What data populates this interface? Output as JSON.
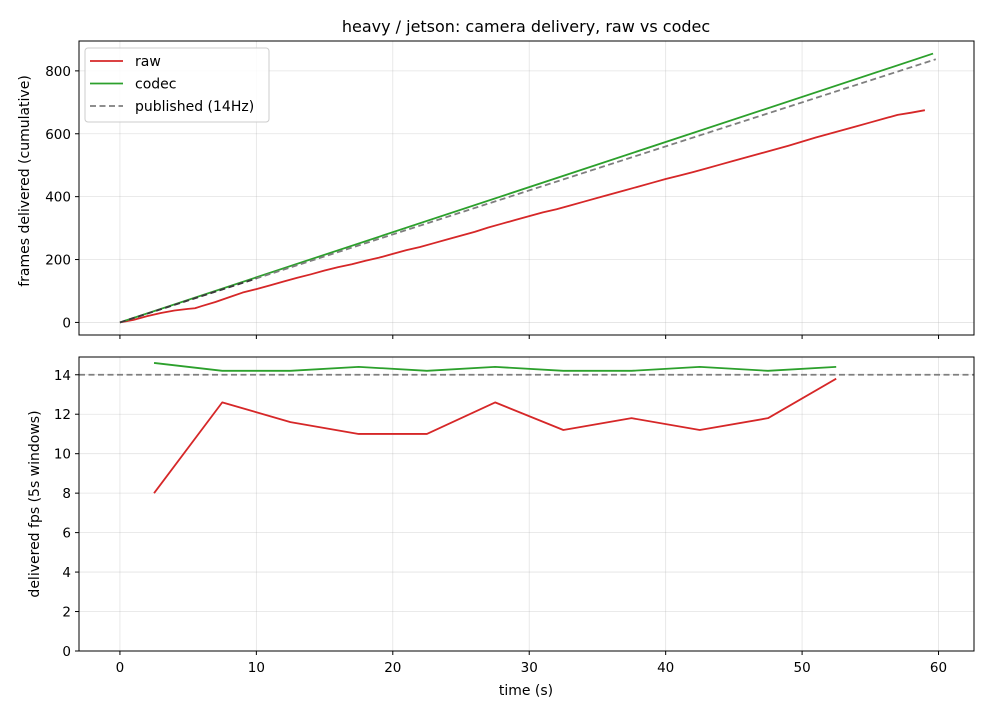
{
  "title": "heavy / jetson: camera delivery, raw vs codec",
  "xlabel": "time (s)",
  "colors": {
    "raw": "#d62728",
    "codec": "#2ca02c",
    "published": "#7f7f7f",
    "published_top": "#3a3a3a"
  },
  "chart_data": [
    {
      "type": "line",
      "ylabel": "frames delivered (cumulative)",
      "xlim": [
        -3,
        62.6
      ],
      "ylim": [
        -40,
        895
      ],
      "xticks": [
        0,
        10,
        20,
        30,
        40,
        50,
        60
      ],
      "yticks": [
        0,
        200,
        400,
        600,
        800
      ],
      "grid": true,
      "legend": "top-left",
      "series": [
        {
          "name": "raw",
          "x": [
            0,
            1,
            2,
            3,
            4,
            5,
            5.5,
            6,
            7,
            8,
            9,
            10,
            11,
            12,
            13,
            14,
            15,
            16,
            17,
            18,
            19,
            20,
            21,
            22,
            23,
            24,
            25,
            26,
            27,
            28,
            29,
            30,
            31,
            32,
            33,
            34,
            35,
            36,
            37,
            38,
            39,
            40,
            41,
            42,
            43,
            44,
            45,
            46,
            47,
            48,
            49,
            50,
            51,
            52,
            53,
            54,
            55,
            56,
            57,
            58,
            59
          ],
          "y": [
            0,
            8,
            20,
            30,
            38,
            43,
            45,
            52,
            65,
            80,
            95,
            106,
            118,
            130,
            142,
            153,
            165,
            176,
            185,
            196,
            206,
            218,
            230,
            240,
            252,
            264,
            276,
            288,
            302,
            314,
            326,
            338,
            350,
            360,
            372,
            384,
            396,
            408,
            420,
            432,
            444,
            456,
            467,
            478,
            490,
            502,
            514,
            526,
            538,
            550,
            562,
            575,
            588,
            600,
            612,
            624,
            636,
            648,
            660,
            667,
            675
          ]
        },
        {
          "name": "codec",
          "x": [
            0,
            59.6
          ],
          "y": [
            0,
            855
          ]
        },
        {
          "name": "published (14Hz)",
          "dashed": true,
          "x": [
            0,
            59.8
          ],
          "y": [
            0,
            837
          ]
        }
      ]
    },
    {
      "type": "line",
      "ylabel": "delivered fps (5s windows)",
      "xlim": [
        -3,
        62.6
      ],
      "ylim": [
        0,
        14.9
      ],
      "xticks": [
        0,
        10,
        20,
        30,
        40,
        50,
        60
      ],
      "yticks": [
        0,
        2,
        4,
        6,
        8,
        10,
        12,
        14
      ],
      "grid": true,
      "series": [
        {
          "name": "raw",
          "x": [
            2.5,
            7.5,
            12.5,
            17.5,
            22.5,
            27.5,
            32.5,
            37.5,
            42.5,
            47.5,
            52.5
          ],
          "y": [
            8.0,
            12.6,
            11.6,
            11.0,
            11.0,
            12.6,
            11.2,
            11.8,
            11.2,
            11.8,
            13.8
          ]
        },
        {
          "name": "codec",
          "x": [
            2.5,
            7.5,
            12.5,
            17.5,
            22.5,
            27.5,
            32.5,
            37.5,
            42.5,
            47.5,
            52.5
          ],
          "y": [
            14.6,
            14.2,
            14.2,
            14.4,
            14.2,
            14.4,
            14.2,
            14.2,
            14.4,
            14.2,
            14.4
          ]
        },
        {
          "name": "published (14Hz)",
          "dashed": true,
          "hline": 14
        }
      ]
    }
  ]
}
